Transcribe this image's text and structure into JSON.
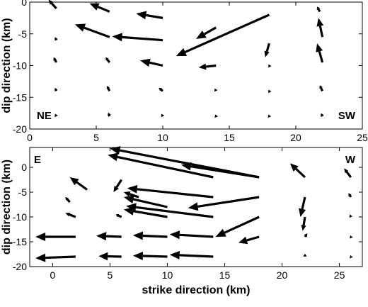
{
  "chart_data": [
    {
      "type": "quiver",
      "xlabel": "",
      "ylabel": "dip direction (km)",
      "xlim": [
        0,
        25
      ],
      "ylim": [
        -20,
        0
      ],
      "xticks": [
        0,
        5,
        10,
        15,
        20,
        25
      ],
      "yticks": [
        0,
        -5,
        -10,
        -15,
        -20
      ],
      "annotations": [
        {
          "text": "NE",
          "position": "bottom-left"
        },
        {
          "text": "SW",
          "position": "bottom-right"
        }
      ],
      "vectors": [
        {
          "x": 2.0,
          "y": -1.0,
          "u": -0.6,
          "v": 1.4
        },
        {
          "x": 6.0,
          "y": -1.5,
          "u": -1.5,
          "v": 1.3
        },
        {
          "x": 10.0,
          "y": -2.5,
          "u": -2.0,
          "v": 0.7
        },
        {
          "x": 21.8,
          "y": -1.5,
          "u": -0.2,
          "v": 0.8
        },
        {
          "x": 6.0,
          "y": -5.5,
          "u": -2.6,
          "v": 2.0
        },
        {
          "x": 10.0,
          "y": -6.0,
          "u": -3.8,
          "v": 0.6
        },
        {
          "x": 14.0,
          "y": -4.0,
          "u": -1.5,
          "v": -1.8
        },
        {
          "x": 18.0,
          "y": -2.0,
          "u": -7.0,
          "v": -6.5
        },
        {
          "x": 22.0,
          "y": -5.5,
          "u": -0.3,
          "v": 3.0
        },
        {
          "x": 2.0,
          "y": -6.0,
          "u": -0.1,
          "v": 0.5
        },
        {
          "x": 18.0,
          "y": -6.5,
          "u": -0.3,
          "v": -2.2
        },
        {
          "x": 22.0,
          "y": -9.5,
          "u": -0.4,
          "v": 3.0
        },
        {
          "x": 2.0,
          "y": -9.5,
          "u": -0.2,
          "v": 0.8
        },
        {
          "x": 6.0,
          "y": -9.5,
          "u": -0.3,
          "v": 0.8
        },
        {
          "x": 10.0,
          "y": -10.0,
          "u": -1.7,
          "v": 0.8
        },
        {
          "x": 14.0,
          "y": -10.0,
          "u": -1.3,
          "v": -0.3
        },
        {
          "x": 18.0,
          "y": -10.0,
          "u": -0.05,
          "v": 0.2
        },
        {
          "x": 2.0,
          "y": -14.0,
          "u": -0.1,
          "v": 0.5
        },
        {
          "x": 6.0,
          "y": -14.0,
          "u": -0.2,
          "v": 0.8
        },
        {
          "x": 10.0,
          "y": -14.0,
          "u": -0.3,
          "v": 0.5
        },
        {
          "x": 14.0,
          "y": -14.0,
          "u": -0.1,
          "v": 0.4
        },
        {
          "x": 18.0,
          "y": -14.0,
          "u": -0.05,
          "v": 0.2
        },
        {
          "x": 22.0,
          "y": -14.0,
          "u": -0.2,
          "v": 0.9
        },
        {
          "x": 2.0,
          "y": -18.0,
          "u": -0.1,
          "v": 0.4
        },
        {
          "x": 6.0,
          "y": -18.0,
          "u": -0.1,
          "v": 0.6
        },
        {
          "x": 10.0,
          "y": -18.0,
          "u": -0.1,
          "v": 0.4
        },
        {
          "x": 14.0,
          "y": -18.0,
          "u": -0.05,
          "v": 0.3
        },
        {
          "x": 18.0,
          "y": -18.0,
          "u": -0.05,
          "v": 0.3
        },
        {
          "x": 22.0,
          "y": -18.0,
          "u": -0.1,
          "v": 0.5
        }
      ]
    },
    {
      "type": "quiver",
      "xlabel": "strike direction (km)",
      "ylabel": "dip direction (km)",
      "xlim": [
        -2,
        27
      ],
      "ylim": [
        -20,
        4
      ],
      "xticks": [
        0,
        5,
        10,
        15,
        20,
        25
      ],
      "yticks": [
        0,
        -5,
        -10,
        -15,
        -20
      ],
      "annotations": [
        {
          "text": "E",
          "position": "top-left"
        },
        {
          "text": "W",
          "position": "top-right"
        }
      ],
      "vectors": [
        {
          "x": 3.0,
          "y": -4.5,
          "u": -1.5,
          "v": 2.5
        },
        {
          "x": 1.5,
          "y": -7.0,
          "u": -0.4,
          "v": 1.0
        },
        {
          "x": 6.0,
          "y": -2.5,
          "u": -0.7,
          "v": -2.5
        },
        {
          "x": 18.0,
          "y": -2.0,
          "u": -13.0,
          "v": 5.8
        },
        {
          "x": 14.0,
          "y": -2.0,
          "u": -9.2,
          "v": 4.5
        },
        {
          "x": 18.0,
          "y": -2.0,
          "u": -6.8,
          "v": 2.5
        },
        {
          "x": 14.0,
          "y": -6.0,
          "u": -7.5,
          "v": 1.8
        },
        {
          "x": 7.5,
          "y": -6.0,
          "u": -1.3,
          "v": 1.0
        },
        {
          "x": 18.0,
          "y": -6.0,
          "u": -6.2,
          "v": -2.2
        },
        {
          "x": 10.0,
          "y": -8.0,
          "u": -3.8,
          "v": 2.0
        },
        {
          "x": 14.0,
          "y": -10.0,
          "u": -7.6,
          "v": 2.2
        },
        {
          "x": 10.0,
          "y": -10.0,
          "u": -3.8,
          "v": 1.5
        },
        {
          "x": 2.0,
          "y": -10.0,
          "u": -0.9,
          "v": 0.8
        },
        {
          "x": 6.0,
          "y": -10.0,
          "u": -0.5,
          "v": 0.5
        },
        {
          "x": 18.0,
          "y": -10.0,
          "u": -3.8,
          "v": -4.0
        },
        {
          "x": 14.0,
          "y": -14.0,
          "u": -3.8,
          "v": 0.5
        },
        {
          "x": 10.0,
          "y": -14.0,
          "u": -3.0,
          "v": 0.3
        },
        {
          "x": 6.0,
          "y": -14.0,
          "u": -2.2,
          "v": 0.2
        },
        {
          "x": 2.0,
          "y": -14.0,
          "u": -3.5,
          "v": 0.0
        },
        {
          "x": 18.0,
          "y": -14.0,
          "u": -1.8,
          "v": -1.2
        },
        {
          "x": 14.0,
          "y": -18.0,
          "u": -3.8,
          "v": 0.4
        },
        {
          "x": 10.0,
          "y": -18.0,
          "u": -3.0,
          "v": 0.2
        },
        {
          "x": 6.0,
          "y": -18.0,
          "u": -2.0,
          "v": 0.1
        },
        {
          "x": 2.0,
          "y": -18.0,
          "u": -3.5,
          "v": -0.3
        },
        {
          "x": 22.0,
          "y": -2.0,
          "u": -1.3,
          "v": 2.8
        },
        {
          "x": 22.0,
          "y": -6.0,
          "u": -0.4,
          "v": -4.0
        },
        {
          "x": 22.0,
          "y": -10.0,
          "u": -0.2,
          "v": -2.8
        },
        {
          "x": 22.0,
          "y": -14.0,
          "u": 0.2,
          "v": 0.7
        },
        {
          "x": 22.0,
          "y": -18.0,
          "u": 0.0,
          "v": 0.6
        },
        {
          "x": 26.0,
          "y": -2.0,
          "u": -0.6,
          "v": 1.8
        },
        {
          "x": 26.0,
          "y": -6.0,
          "u": -0.2,
          "v": 0.8
        },
        {
          "x": 26.0,
          "y": -10.0,
          "u": -0.1,
          "v": 0.5
        },
        {
          "x": 26.0,
          "y": -14.0,
          "u": -0.05,
          "v": 0.3
        },
        {
          "x": 26.0,
          "y": -18.0,
          "u": -0.05,
          "v": 0.3
        }
      ]
    }
  ]
}
